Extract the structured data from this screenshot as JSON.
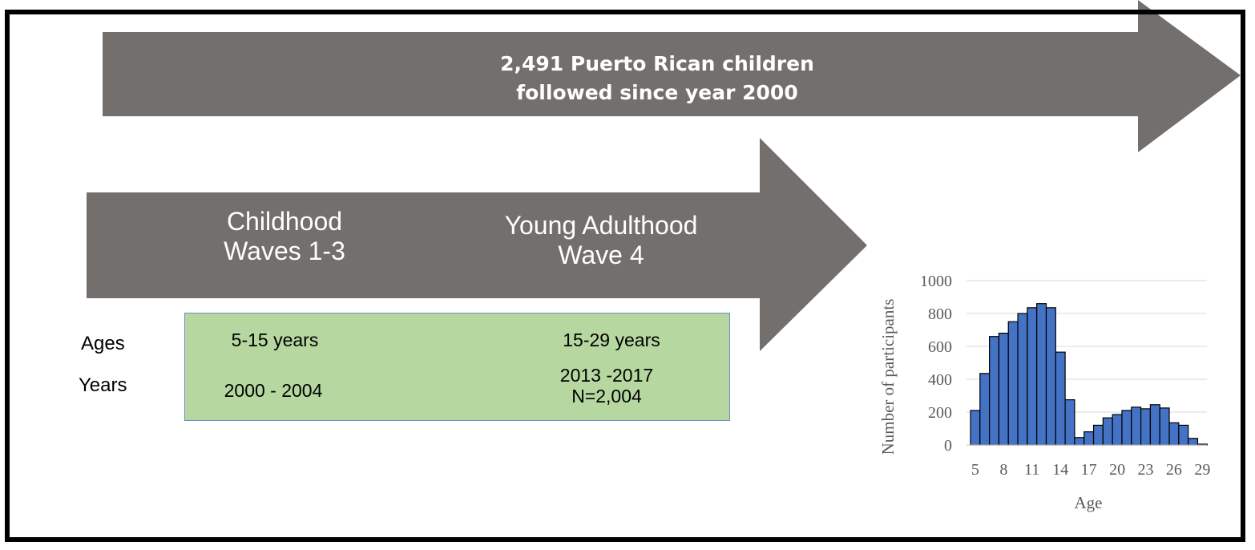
{
  "top_arrow": {
    "line1": "2,491 Puerto Rican children",
    "line2": "followed since year 2000"
  },
  "phase_arrow": {
    "childhood": {
      "line1": "Childhood",
      "line2": "Waves 1-3"
    },
    "young_adulthood": {
      "line1": "Young Adulthood",
      "line2": "Wave 4"
    }
  },
  "table": {
    "row_labels": {
      "ages": "Ages",
      "years": "Years"
    },
    "childhood": {
      "ages": "5-15 years",
      "years": "2000 - 2004"
    },
    "young_adulthood": {
      "ages": "15-29 years",
      "years_line1": "2013 -2017",
      "years_line2": "N=2,004"
    }
  },
  "colors": {
    "arrow_fill": "#736f6d",
    "box_fill": "#b6d7a0",
    "bar_fill": "#4472c4"
  },
  "chart_data": {
    "type": "bar",
    "xlabel": "Age",
    "ylabel": "Number of participants",
    "ylim": [
      0,
      1000
    ],
    "yticks": [
      0,
      200,
      400,
      600,
      800,
      1000
    ],
    "xticks": [
      "5",
      "8",
      "11",
      "14",
      "17",
      "20",
      "23",
      "26",
      "29"
    ],
    "categories": [
      5,
      6,
      7,
      8,
      9,
      10,
      11,
      12,
      13,
      14,
      15,
      16,
      17,
      18,
      19,
      20,
      21,
      22,
      23,
      24,
      25,
      26,
      27,
      28,
      29
    ],
    "values": [
      210,
      435,
      660,
      680,
      750,
      800,
      835,
      860,
      835,
      565,
      275,
      45,
      80,
      120,
      165,
      185,
      210,
      230,
      220,
      245,
      225,
      135,
      120,
      40,
      5
    ],
    "grid": true
  }
}
